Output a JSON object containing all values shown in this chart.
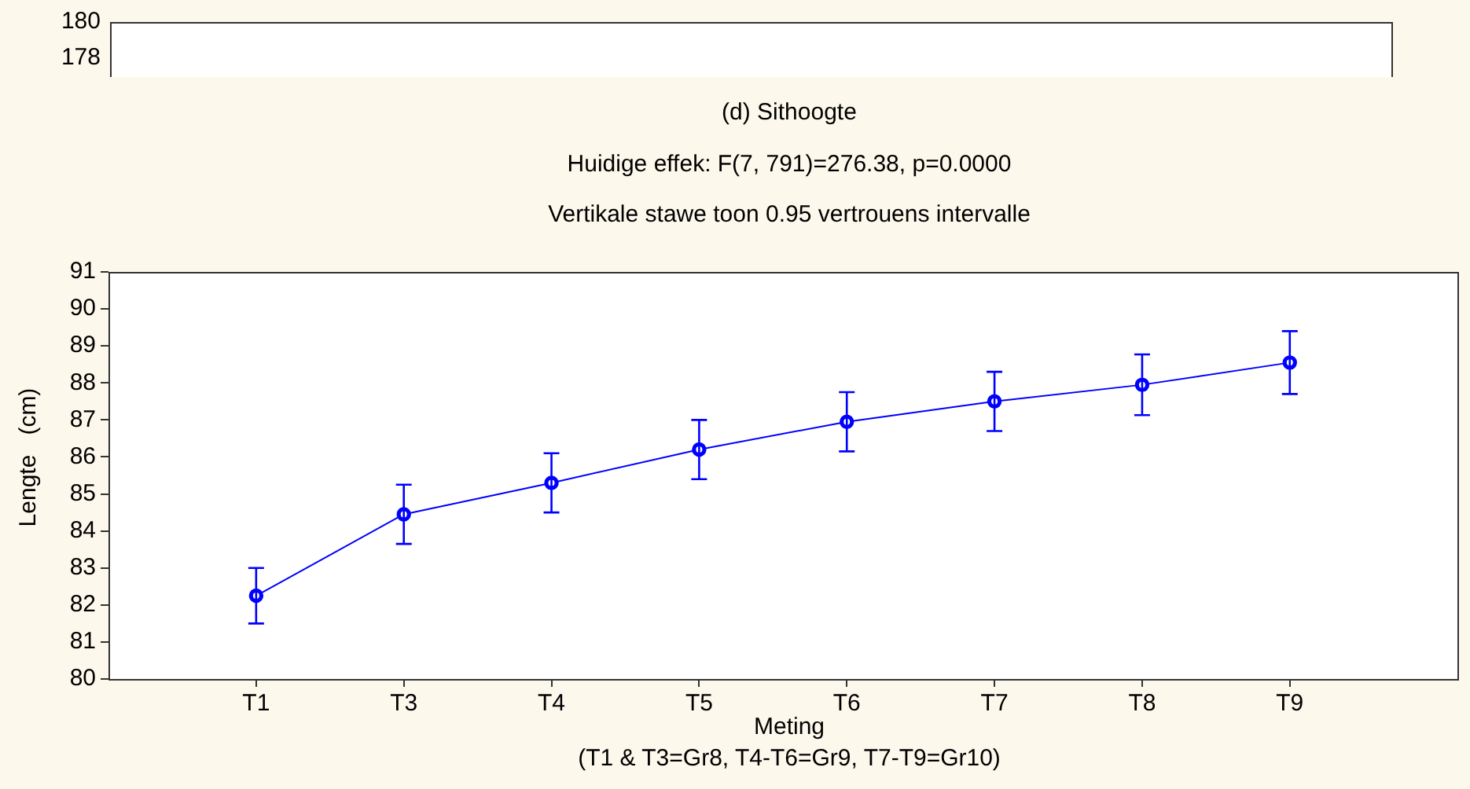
{
  "chart_data": [
    {
      "type": "other",
      "annotations": [
        "180",
        "178"
      ]
    },
    {
      "type": "line",
      "title": "(d) Sithoogte",
      "subtitle": "Huidige effek: F(7, 791)=276.38, p=0.0000",
      "xlabel": "Meting",
      "ylabel": "Lengte   (cm)",
      "annotations": [
        "Vertikale stawe toon 0.95 vertrouens intervalle",
        "(T1 & T3=Gr8, T4-T6=Gr9, T7-T9=Gr10)"
      ],
      "categories": [
        "T1",
        "T3",
        "T4",
        "T5",
        "T6",
        "T7",
        "T8",
        "T9"
      ],
      "series": [
        {
          "color": "#0000ff",
          "values": [
            82.25,
            84.45,
            85.3,
            86.2,
            86.95,
            87.5,
            87.95,
            88.55
          ],
          "errors": [
            0.75,
            0.8,
            0.8,
            0.8,
            0.8,
            0.8,
            0.82,
            0.85
          ]
        }
      ],
      "ylim": [
        80,
        91
      ],
      "yticks": [
        80,
        81,
        82,
        83,
        84,
        85,
        86,
        87,
        88,
        89,
        90,
        91
      ],
      "grid": false,
      "legend": false,
      "marker": "circle"
    }
  ]
}
